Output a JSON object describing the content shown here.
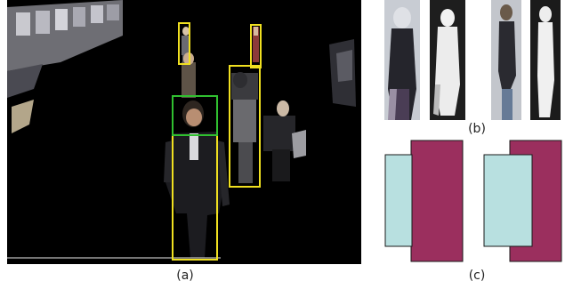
{
  "figure": {
    "captions": {
      "a": "(a)",
      "b": "(b)",
      "c": "(c)"
    },
    "colors": {
      "background": "#000000",
      "detection_box": "#f0e020",
      "head_box": "#30c030",
      "rect_light": "#b8e0e0",
      "rect_dark": "#9b2f5e",
      "outline": "#1a1a1a"
    },
    "panel_b_thumbnails": [
      {
        "kind": "photo",
        "subject": "person-front-view"
      },
      {
        "kind": "mask",
        "subject": "person-front-silhouette"
      },
      {
        "kind": "photo",
        "subject": "person-side-view"
      },
      {
        "kind": "mask",
        "subject": "person-side-silhouette"
      }
    ],
    "panel_c_pairs": [
      {
        "front_shape": "light-rect",
        "back_shape": "dark-rect",
        "order": "light-in-front-left"
      },
      {
        "front_shape": "light-rect",
        "back_shape": "dark-rect",
        "order": "light-in-front-left"
      }
    ]
  }
}
